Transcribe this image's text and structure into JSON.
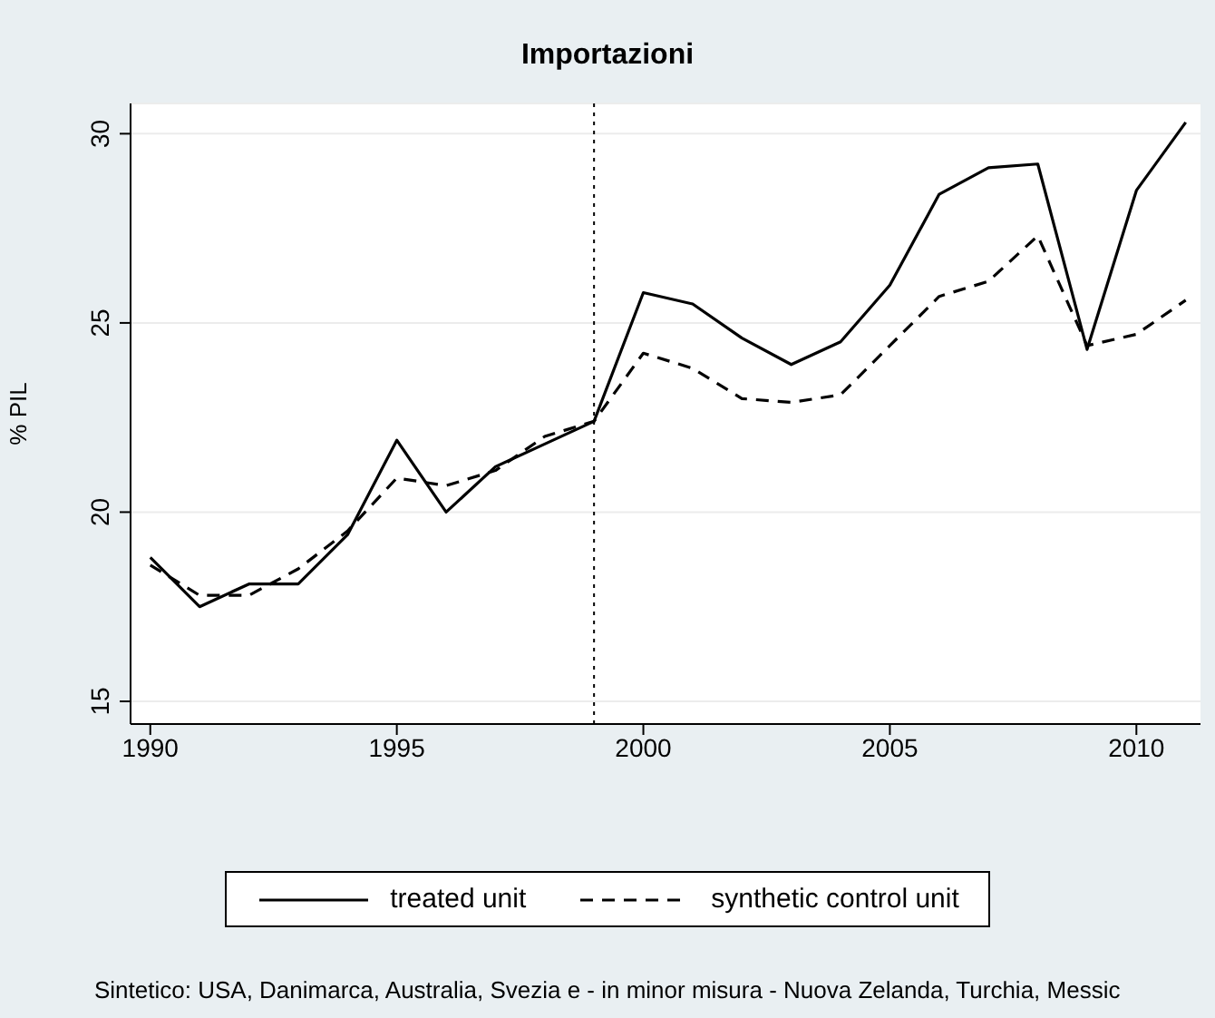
{
  "chart_data": {
    "type": "line",
    "title": "Importazioni",
    "ylabel": "% PIL",
    "x": [
      1990,
      1991,
      1992,
      1993,
      1994,
      1995,
      1996,
      1997,
      1998,
      1999,
      2000,
      2001,
      2002,
      2003,
      2004,
      2005,
      2006,
      2007,
      2008,
      2009,
      2010,
      2011
    ],
    "series": [
      {
        "name": "treated unit",
        "color": "#000000",
        "line_style": "solid",
        "values": [
          18.8,
          17.5,
          18.1,
          18.1,
          19.4,
          21.9,
          20.0,
          21.2,
          21.8,
          22.4,
          25.8,
          25.5,
          24.6,
          23.9,
          24.5,
          26.0,
          28.4,
          29.1,
          29.2,
          24.3,
          28.5,
          30.3
        ]
      },
      {
        "name": "synthetic control unit",
        "color": "#000000",
        "line_style": "dashed",
        "values": [
          18.6,
          17.8,
          17.8,
          18.5,
          19.5,
          20.9,
          20.7,
          21.1,
          22.0,
          22.4,
          24.2,
          23.8,
          23.0,
          22.9,
          23.1,
          24.4,
          25.7,
          26.1,
          27.3,
          24.4,
          24.7,
          25.6
        ]
      }
    ],
    "xlim": [
      1989.6,
      2011.3
    ],
    "xticks": [
      1990,
      1995,
      2000,
      2005,
      2010
    ],
    "ylim": [
      14.4,
      30.8
    ],
    "yticks": [
      15,
      20,
      25,
      30
    ],
    "grid": "y",
    "legend": "bottom",
    "marker": "none",
    "ref_lines": [
      {
        "axis": "x",
        "value": 1999,
        "line_style": "dotted"
      }
    ],
    "annotations": [
      "Sintetico: USA, Danimarca, Australia, Svezia e - in minor misura - Nuova Zelanda, Turchia, Messic"
    ]
  }
}
